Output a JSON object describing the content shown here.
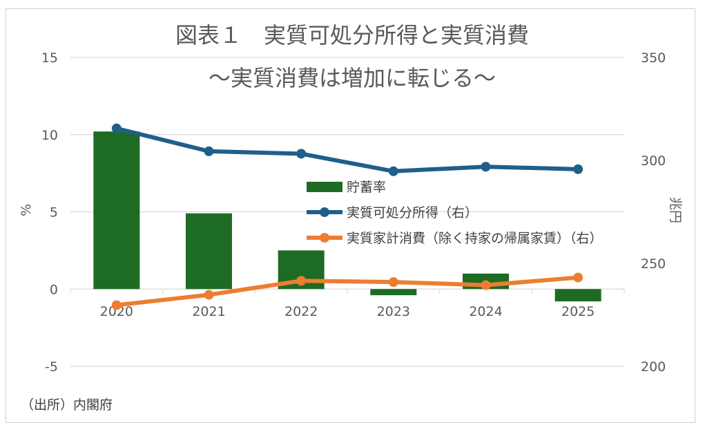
{
  "chart_data": {
    "type": "bar+line (dual axis)",
    "title": "図表１　実質可処分所得と実質消費",
    "subtitle": "～実質消費は増加に転じる～",
    "categories": [
      "2020",
      "2021",
      "2022",
      "2023",
      "2024",
      "2025"
    ],
    "left_axis": {
      "label": "%",
      "min": -5,
      "max": 15,
      "ticks": [
        "15",
        "10",
        "5",
        "0",
        "-5"
      ]
    },
    "right_axis": {
      "label": "兆円",
      "min": 200,
      "max": 350,
      "ticks": [
        "350",
        "300",
        "250",
        "200"
      ]
    },
    "series": [
      {
        "name": "貯蓄率",
        "type": "bar",
        "axis": "left",
        "color": "#1e6b23",
        "values": [
          10.2,
          4.9,
          2.5,
          -0.4,
          1.0,
          -0.8
        ]
      },
      {
        "name": "実質可処分所得（右）",
        "type": "line",
        "axis": "right",
        "color": "#1f5f8b",
        "values": [
          315.5,
          304.4,
          303.2,
          294.7,
          296.9,
          295.7
        ]
      },
      {
        "name": "実質家計消費（除く持家の帰属家賃）（右）",
        "type": "line",
        "axis": "right",
        "color": "#ed7d31",
        "values": [
          229.7,
          234.7,
          241.5,
          240.9,
          239.4,
          243.1
        ]
      }
    ],
    "source_note": "（出所）内閣府"
  }
}
